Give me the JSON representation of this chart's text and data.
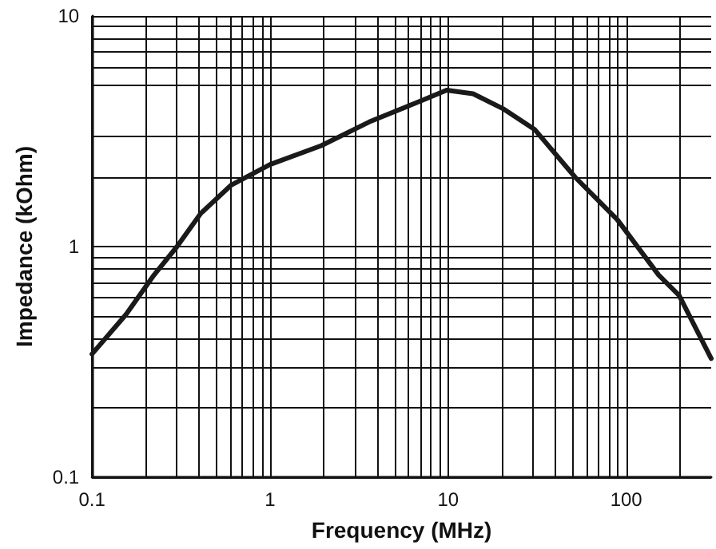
{
  "chart_data": {
    "type": "line",
    "xlabel": "Frequency (MHz)",
    "ylabel": "Impedance (kOhm)",
    "log": "xy",
    "grid": true,
    "marker": "none",
    "line_style": "solid",
    "xlim": [
      0.1,
      300
    ],
    "ylim": [
      0.1,
      10
    ],
    "xticks": [
      0.1,
      {
        "value": 0.2,
        "label": null
      },
      {
        "value": 0.3,
        "label": null
      },
      {
        "value": 0.4,
        "label": null
      },
      {
        "value": 0.5,
        "label": null
      },
      {
        "value": 0.6,
        "label": null
      },
      {
        "value": 0.7,
        "label": null
      },
      {
        "value": 0.8,
        "label": null
      },
      {
        "value": 0.9,
        "label": null
      },
      1,
      {
        "value": 2,
        "label": null
      },
      {
        "value": 3,
        "label": null
      },
      {
        "value": 4,
        "label": null
      },
      {
        "value": 5,
        "label": null
      },
      {
        "value": 6,
        "label": null
      },
      {
        "value": 7,
        "label": null
      },
      {
        "value": 8,
        "label": null
      },
      {
        "value": 9,
        "label": null
      },
      10,
      {
        "value": 20,
        "label": null
      },
      {
        "value": 30,
        "label": null
      },
      {
        "value": 40,
        "label": null
      },
      {
        "value": 50,
        "label": null
      },
      {
        "value": 60,
        "label": null
      },
      {
        "value": 70,
        "label": null
      },
      {
        "value": 80,
        "label": null
      },
      {
        "value": 90,
        "label": null
      },
      100,
      {
        "value": 200,
        "label": null
      }
    ],
    "yticks": [
      0.1,
      {
        "value": 0.2,
        "label": null
      },
      {
        "value": 0.3,
        "label": null
      },
      {
        "value": 0.4,
        "label": null
      },
      {
        "value": 0.5,
        "label": null
      },
      {
        "value": 0.6,
        "label": null
      },
      {
        "value": 0.7,
        "label": null
      },
      {
        "value": 0.8,
        "label": null
      },
      {
        "value": 0.9,
        "label": null
      },
      1,
      {
        "value": 2,
        "label": null
      },
      {
        "value": 3,
        "label": null
      },
      {
        "value": 5,
        "label": null
      },
      {
        "value": 6,
        "label": null
      },
      {
        "value": 7,
        "label": null
      },
      {
        "value": 8,
        "label": null
      },
      {
        "value": 9,
        "label": null
      },
      10
    ],
    "series": [
      {
        "color": "#1a1a1a",
        "x": [
          0.1,
          0.155,
          0.223,
          0.3,
          0.407,
          0.606,
          1,
          1.94,
          3.6,
          6.97,
          9.8,
          13.8,
          20.6,
          30.7,
          51.6,
          89,
          152,
          198,
          300
        ],
        "values": [
          0.342,
          0.507,
          0.753,
          1.0,
          1.39,
          1.85,
          2.27,
          2.74,
          3.47,
          4.27,
          4.77,
          4.6,
          3.94,
          3.21,
          2.0,
          1.31,
          0.753,
          0.614,
          0.327
        ]
      }
    ]
  }
}
